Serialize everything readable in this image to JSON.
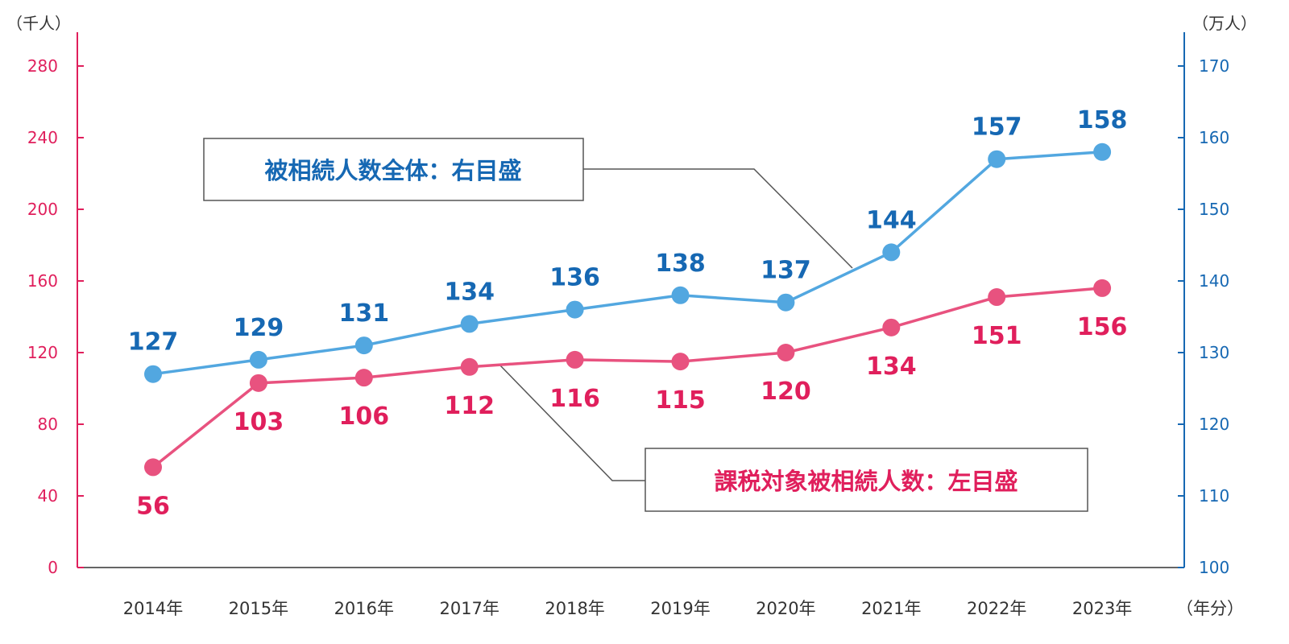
{
  "chart_data": {
    "type": "line",
    "categories": [
      "2014年",
      "2015年",
      "2016年",
      "2017年",
      "2018年",
      "2019年",
      "2020年",
      "2021年",
      "2022年",
      "2023年"
    ],
    "xlabel": "（年分）",
    "y_left": {
      "label": "（千人）",
      "ylim": [
        0,
        280
      ],
      "ticks": [
        0,
        40,
        80,
        120,
        160,
        200,
        240,
        280
      ]
    },
    "y_right": {
      "label": "（万人）",
      "ylim": [
        100,
        170
      ],
      "ticks": [
        100,
        110,
        120,
        130,
        140,
        150,
        160,
        170
      ]
    },
    "grid": false,
    "series": [
      {
        "name": "被相続人数全体：右目盛",
        "axis": "right",
        "color": "#52a7e0",
        "label_color": "#1668b3",
        "values": [
          127,
          129,
          131,
          134,
          136,
          138,
          137,
          144,
          157,
          158
        ]
      },
      {
        "name": "課税対象被相続人数：左目盛",
        "axis": "left",
        "color": "#e8527f",
        "label_color": "#e01f5c",
        "values": [
          56,
          103,
          106,
          112,
          116,
          115,
          120,
          134,
          151,
          156
        ]
      }
    ],
    "left_axis_color": "#e01f5c",
    "right_axis_color": "#1668b3"
  }
}
